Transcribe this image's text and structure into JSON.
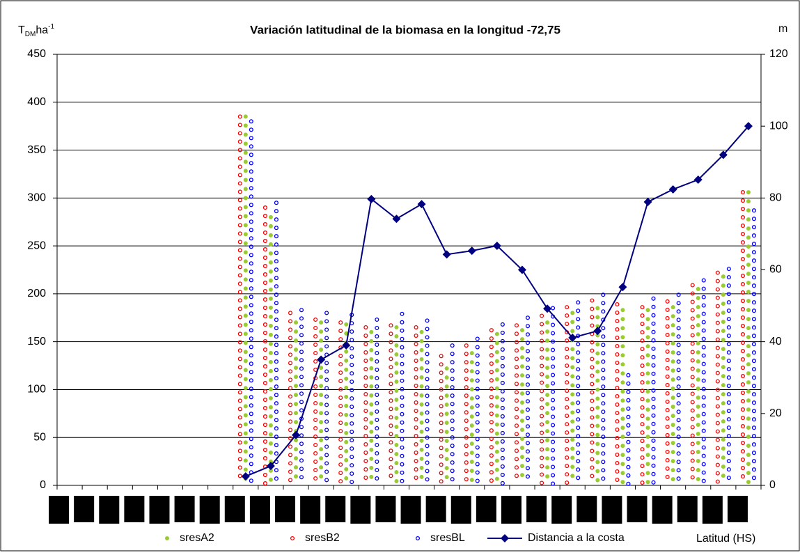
{
  "chart_data": {
    "type": "dot-column",
    "title": "Variación latitudinal de la biomasa en la longitud -72,75",
    "y_label": [
      "T",
      "DM",
      "ha",
      "-1"
    ],
    "y2_label": "m",
    "x_label": "Latitud (HS)",
    "categories": [
      null,
      null,
      null,
      null,
      null,
      null,
      null,
      null,
      null,
      null,
      null,
      null,
      null,
      null,
      null,
      null,
      null,
      null,
      null,
      null,
      null,
      null,
      null,
      null,
      null,
      null,
      null,
      null
    ],
    "ylim": [
      0,
      450
    ],
    "yticks": [
      0,
      50,
      100,
      150,
      200,
      250,
      300,
      350,
      400,
      450
    ],
    "y2lim": [
      0,
      120
    ],
    "y2ticks": [
      0,
      20,
      40,
      60,
      80,
      100,
      120
    ],
    "grid": true,
    "series": [
      {
        "name": "sresA2",
        "color": "#99cc33",
        "marker": "filled-dot",
        "values": [
          null,
          null,
          null,
          null,
          null,
          null,
          null,
          385,
          280,
          170,
          170,
          168,
          160,
          165,
          160,
          122,
          138,
          158,
          162,
          170,
          180,
          185,
          183,
          183,
          186,
          205,
          218,
          306
        ]
      },
      {
        "name": "sresB2",
        "color": "#ff0000",
        "marker": "open-dot",
        "values": [
          null,
          null,
          null,
          null,
          null,
          null,
          null,
          385,
          290,
          180,
          173,
          170,
          165,
          167,
          165,
          135,
          146,
          162,
          167,
          177,
          186,
          193,
          189,
          186,
          192,
          209,
          222,
          306
        ]
      },
      {
        "name": "sresBL",
        "color": "#0000ff",
        "marker": "open-dot",
        "values": [
          null,
          null,
          null,
          null,
          null,
          null,
          null,
          380,
          295,
          183,
          180,
          178,
          173,
          179,
          172,
          146,
          153,
          168,
          175,
          185,
          191,
          199,
          115,
          195,
          199,
          214,
          226,
          287
        ]
      },
      {
        "name": "Distancia a la costa",
        "color": "#000080",
        "marker": "line-diamond",
        "axis": "y2",
        "values": [
          null,
          null,
          null,
          null,
          null,
          null,
          null,
          2.5,
          5.4,
          14,
          35,
          39,
          79.7,
          74.2,
          78.3,
          64.3,
          65.3,
          66.7,
          60,
          49.2,
          41.1,
          43,
          55.2,
          78.9,
          82.4,
          85.1,
          92,
          100
        ]
      }
    ]
  }
}
